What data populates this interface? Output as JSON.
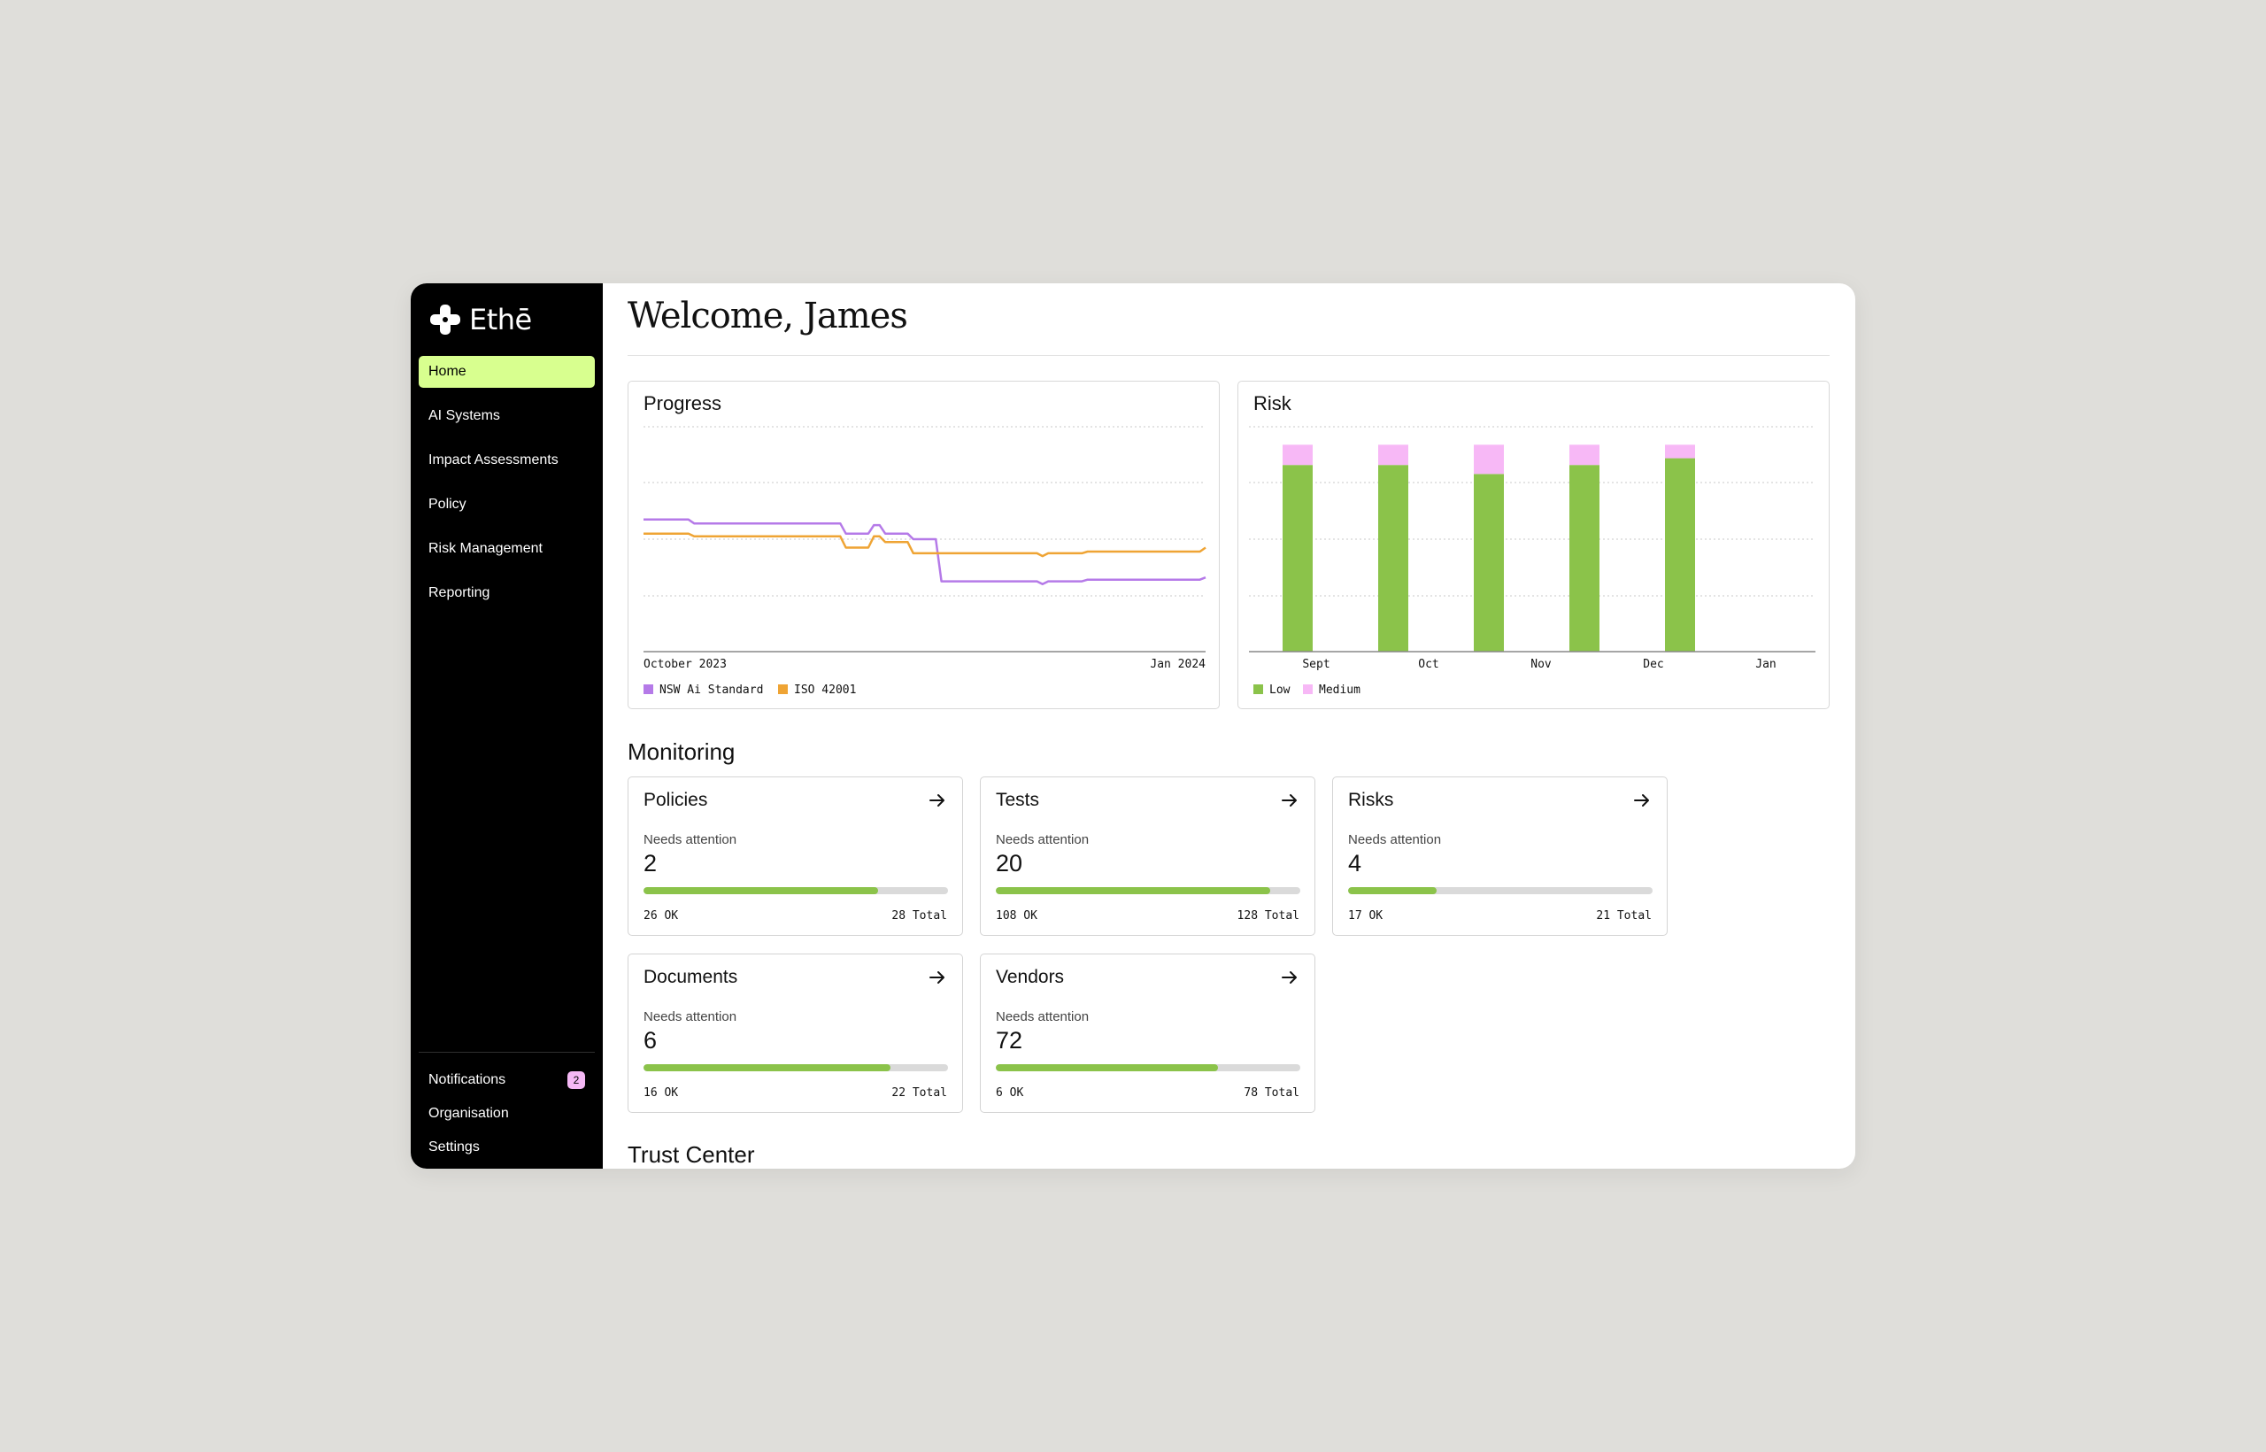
{
  "app": {
    "brand": "Ethē"
  },
  "sidebar": {
    "items": [
      {
        "label": "Home",
        "active": true
      },
      {
        "label": "AI Systems"
      },
      {
        "label": "Impact Assessments"
      },
      {
        "label": "Policy"
      },
      {
        "label": "Risk Management"
      },
      {
        "label": "Reporting"
      }
    ],
    "bottom": [
      {
        "label": "Notifications",
        "badge": "2"
      },
      {
        "label": "Organisation"
      },
      {
        "label": "Settings"
      }
    ]
  },
  "main": {
    "welcome": "Welcome, James",
    "monitoring_title": "Monitoring",
    "trust_title": "Trust Center"
  },
  "colors": {
    "accent": "#d8ff8f",
    "nsw": "#b57ae8",
    "iso": "#efa434",
    "low": "#8bc34a",
    "medium": "#f7b8f6"
  },
  "chart_data": [
    {
      "type": "line",
      "title": "Progress",
      "x_tick_labels": [
        "October 2023",
        "Jan 2024"
      ],
      "grid": true,
      "legend_position": "bottom-left",
      "series": [
        {
          "name": "NSW Ai Standard",
          "color": "#b57ae8",
          "values": [
            [
              0,
              2.35
            ],
            [
              8,
              2.35
            ],
            [
              9,
              2.28
            ],
            [
              35,
              2.28
            ],
            [
              36,
              2.1
            ],
            [
              40,
              2.1
            ],
            [
              41,
              2.25
            ],
            [
              42,
              2.25
            ],
            [
              43,
              2.1
            ],
            [
              47,
              2.1
            ],
            [
              48,
              2.0
            ],
            [
              52,
              2.0
            ],
            [
              53,
              1.25
            ],
            [
              70,
              1.25
            ],
            [
              71,
              1.2
            ],
            [
              72,
              1.25
            ],
            [
              78,
              1.25
            ],
            [
              79,
              1.28
            ],
            [
              99,
              1.28
            ],
            [
              100,
              1.32
            ]
          ]
        },
        {
          "name": "ISO 42001",
          "color": "#efa434",
          "values": [
            [
              0,
              2.1
            ],
            [
              8,
              2.1
            ],
            [
              9,
              2.05
            ],
            [
              35,
              2.05
            ],
            [
              36,
              1.85
            ],
            [
              40,
              1.85
            ],
            [
              41,
              2.05
            ],
            [
              42,
              2.05
            ],
            [
              43,
              1.95
            ],
            [
              47,
              1.95
            ],
            [
              48,
              1.75
            ],
            [
              70,
              1.75
            ],
            [
              71,
              1.7
            ],
            [
              72,
              1.75
            ],
            [
              78,
              1.75
            ],
            [
              79,
              1.78
            ],
            [
              99,
              1.78
            ],
            [
              100,
              1.85
            ]
          ]
        }
      ],
      "xlim": [
        0,
        100
      ],
      "ylim": [
        0,
        4
      ]
    },
    {
      "type": "bar",
      "title": "Risk",
      "categories": [
        "Sept",
        "Oct",
        "Nov",
        "Dec",
        "Jan"
      ],
      "series": [
        {
          "name": "Low",
          "color": "#8bc34a",
          "values": [
            83,
            83,
            79,
            83,
            86
          ]
        },
        {
          "name": "Medium",
          "color": "#f7b8f6",
          "values": [
            9,
            9,
            13,
            9,
            6
          ]
        }
      ],
      "bar_positions": [
        0.5,
        1.5,
        2.5,
        3.5,
        4.5
      ],
      "ylim": [
        0,
        100
      ],
      "grid": true,
      "legend_position": "bottom-left"
    }
  ],
  "monitoring": [
    {
      "title": "Policies",
      "needs_label": "Needs attention",
      "count": "2",
      "ok": "26 OK",
      "total": "28 Total",
      "progress": 0.77
    },
    {
      "title": "Tests",
      "needs_label": "Needs attention",
      "count": "20",
      "ok": "108 OK",
      "total": "128 Total",
      "progress": 0.9
    },
    {
      "title": "Risks",
      "needs_label": "Needs attention",
      "count": "4",
      "ok": "17 OK",
      "total": "21 Total",
      "progress": 0.29
    },
    {
      "title": "Documents",
      "needs_label": "Needs attention",
      "count": "6",
      "ok": "16 OK",
      "total": "22 Total",
      "progress": 0.81
    },
    {
      "title": "Vendors",
      "needs_label": "Needs attention",
      "count": "72",
      "ok": "6 OK",
      "total": "78 Total",
      "progress": 0.73
    }
  ]
}
